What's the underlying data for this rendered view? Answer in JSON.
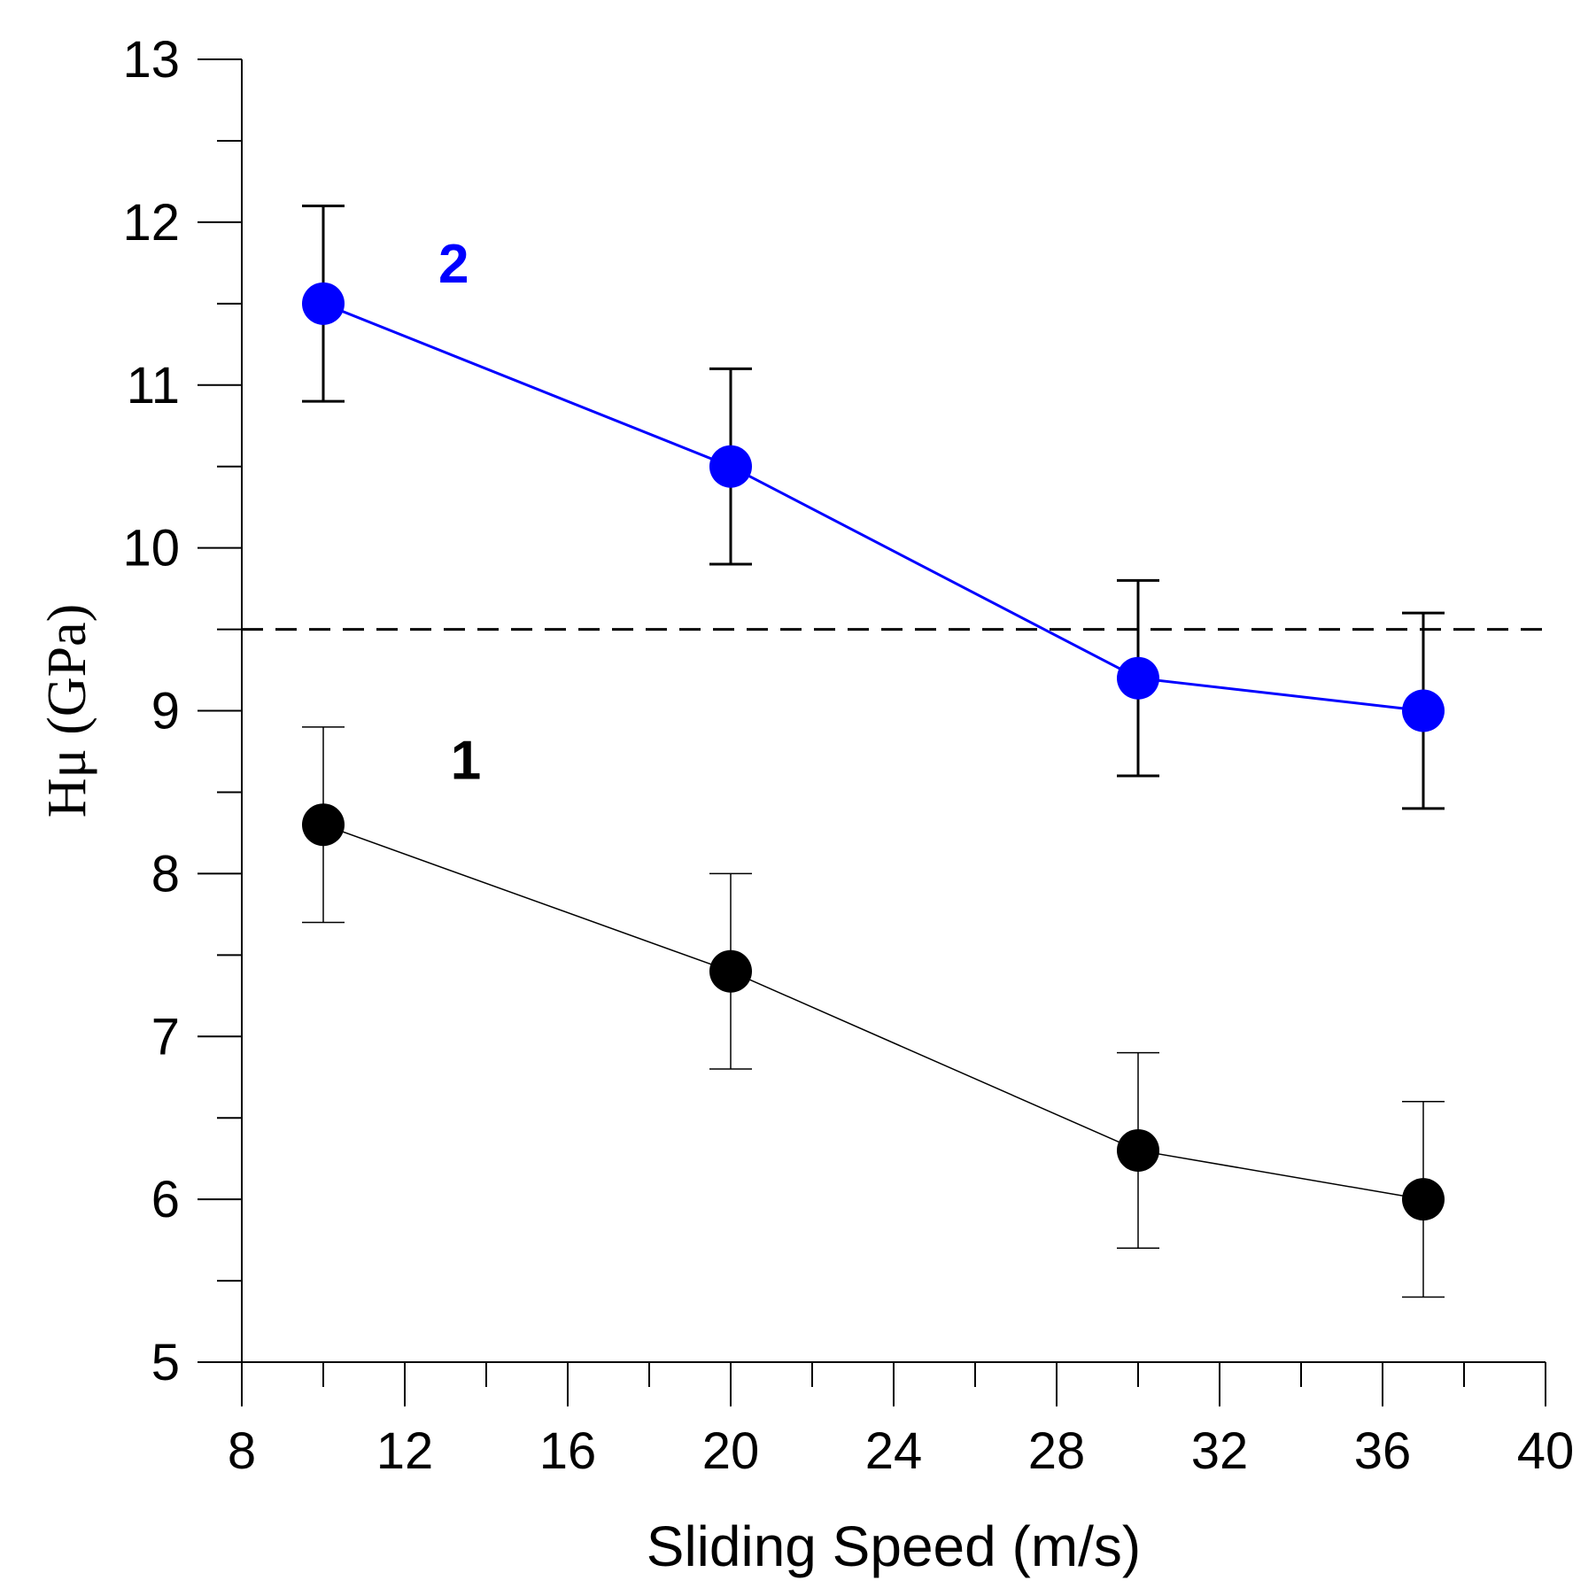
{
  "chart_data": {
    "type": "line",
    "title": "",
    "xlabel": "Sliding Speed (m/s)",
    "ylabel": "Hμ (GPa)",
    "xlim": [
      8,
      40
    ],
    "ylim": [
      5,
      13
    ],
    "x_major_ticks": [
      8,
      12,
      16,
      20,
      24,
      28,
      32,
      36,
      40
    ],
    "x_tick_labels": [
      "8",
      "12",
      "16",
      "20",
      "24",
      "28",
      "32",
      "36",
      "40"
    ],
    "x_minor_step": 2,
    "y_major_ticks": [
      5,
      6,
      7,
      8,
      9,
      10,
      11,
      12,
      13
    ],
    "y_tick_labels": [
      "5",
      "6",
      "7",
      "8",
      "9",
      "10",
      "11",
      "12",
      "13"
    ],
    "y_minor_step": 0.5,
    "grid": false,
    "reference_line": {
      "y": 9.5,
      "style": "dashed",
      "color": "#000000"
    },
    "series": [
      {
        "name": "1",
        "color": "#000000",
        "x": [
          10,
          20,
          30,
          37
        ],
        "y": [
          8.3,
          7.4,
          6.3,
          6.0
        ],
        "err": [
          0.6,
          0.6,
          0.6,
          0.6
        ],
        "label_at": [
          13.5,
          8.7
        ]
      },
      {
        "name": "2",
        "color": "#0000ff",
        "x": [
          10,
          20,
          30,
          37
        ],
        "y": [
          11.5,
          10.5,
          9.2,
          9.0
        ],
        "err": [
          0.6,
          0.6,
          0.6,
          0.6
        ],
        "label_at": [
          13.2,
          11.75
        ]
      }
    ]
  }
}
